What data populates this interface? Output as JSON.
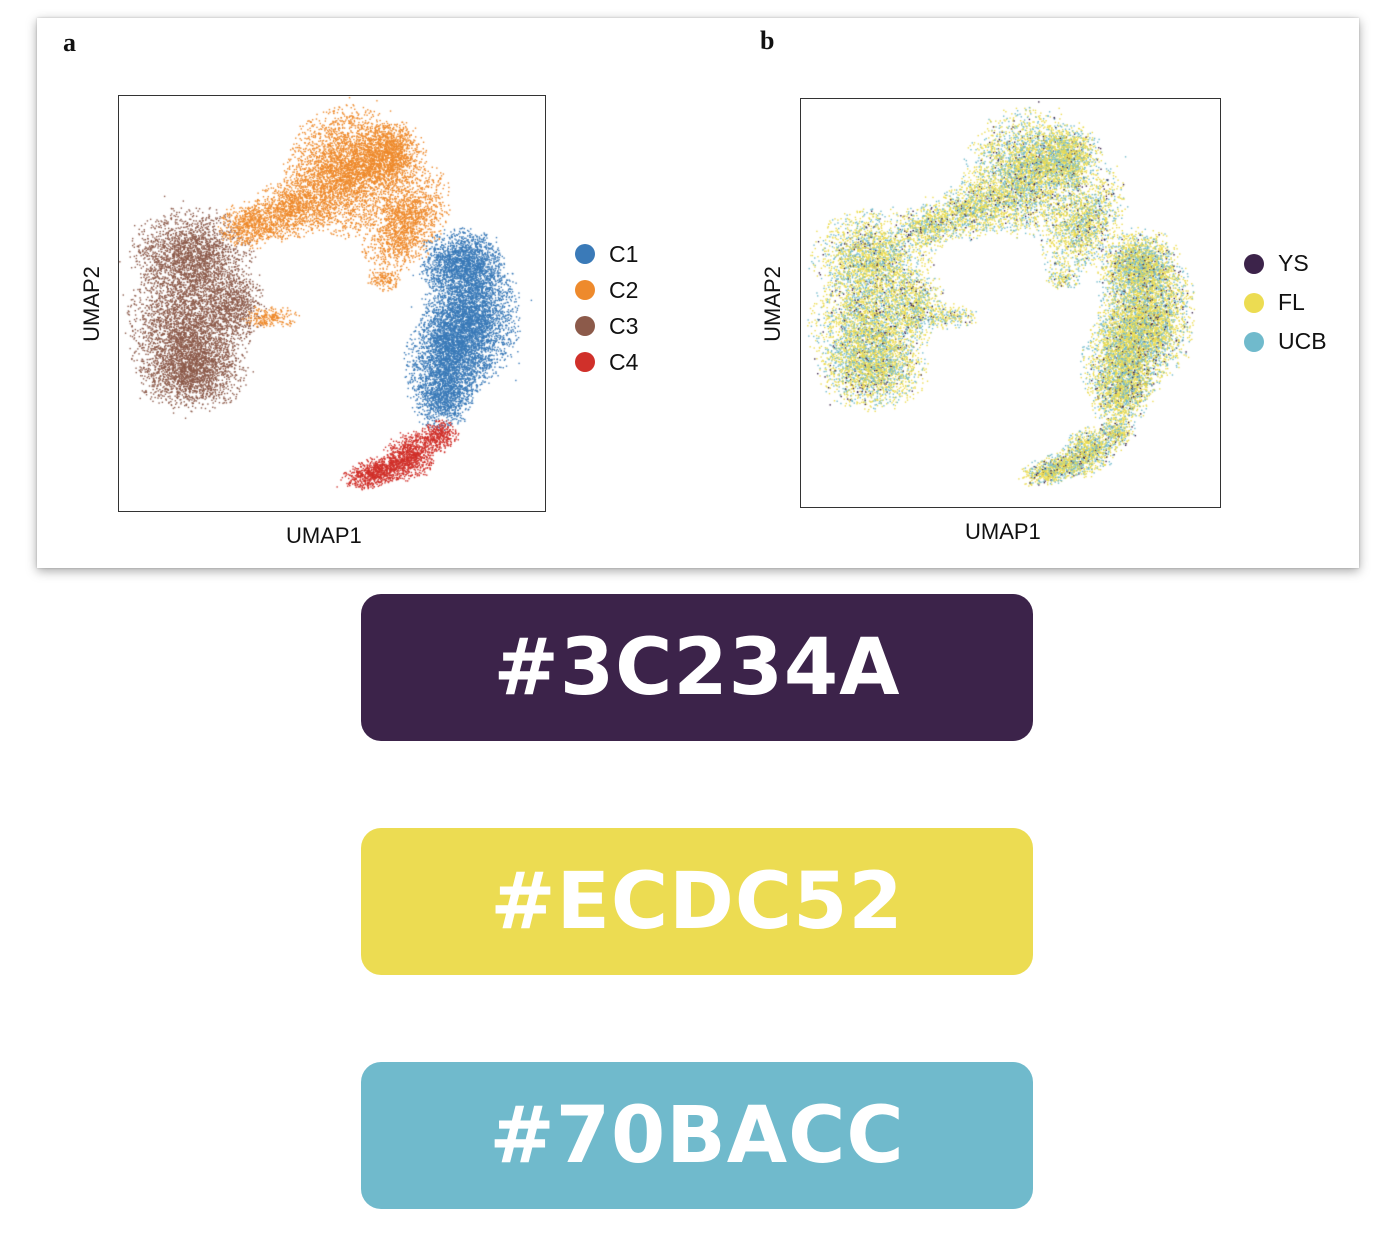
{
  "figure": {
    "panels": [
      {
        "letter": "a",
        "xlabel": "UMAP1",
        "ylabel": "UMAP2",
        "legend": [
          {
            "label": "C1",
            "color": "#3a7ab8"
          },
          {
            "label": "C2",
            "color": "#ee8a2c"
          },
          {
            "label": "C3",
            "color": "#8c5a4a"
          },
          {
            "label": "C4",
            "color": "#d0302a"
          }
        ]
      },
      {
        "letter": "b",
        "xlabel": "UMAP1",
        "ylabel": "UMAP2",
        "legend": [
          {
            "label": "YS",
            "color": "#3c234a"
          },
          {
            "label": "FL",
            "color": "#ecdc52"
          },
          {
            "label": "UCB",
            "color": "#70bacc"
          }
        ]
      }
    ]
  },
  "chart_data": [
    {
      "type": "scatter",
      "xlabel": "UMAP1",
      "ylabel": "UMAP2",
      "series": [
        {
          "name": "C1",
          "color": "#3a7ab8"
        },
        {
          "name": "C2",
          "color": "#ee8a2c"
        },
        {
          "name": "C3",
          "color": "#8c5a4a"
        },
        {
          "name": "C4",
          "color": "#d0302a"
        }
      ],
      "legend": "right"
    },
    {
      "type": "scatter",
      "xlabel": "UMAP1",
      "ylabel": "UMAP2",
      "series": [
        {
          "name": "YS",
          "color": "#3c234a"
        },
        {
          "name": "FL",
          "color": "#ecdc52"
        },
        {
          "name": "UCB",
          "color": "#70bacc"
        }
      ],
      "legend": "right"
    }
  ],
  "swatches": [
    {
      "label": "#3C234A",
      "color": "#3C234A"
    },
    {
      "label": "#ECDC52",
      "color": "#ECDC52"
    },
    {
      "label": "#70BACC",
      "color": "#70BACC"
    }
  ]
}
